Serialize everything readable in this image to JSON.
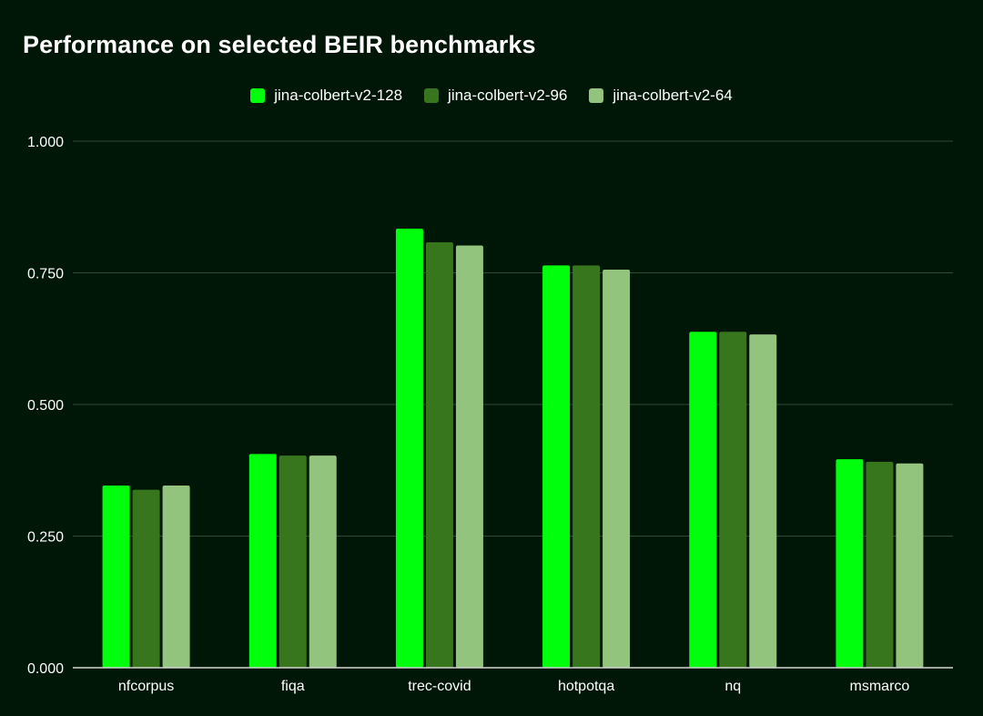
{
  "colors": {
    "background": "#001607",
    "gridline": "#2e4b36",
    "axis": "#cfd6d0",
    "text": "#ffffff"
  },
  "chart_data": {
    "type": "bar",
    "title": "Performance on selected BEIR benchmarks",
    "xlabel": "",
    "ylabel": "",
    "ylim": [
      0,
      1
    ],
    "yticks": [
      "1.000",
      "0.750",
      "0.500",
      "0.250",
      "0.000"
    ],
    "ytick_values": [
      1.0,
      0.75,
      0.5,
      0.25,
      0.0
    ],
    "legend_position": "top-center",
    "grid": true,
    "categories": [
      "nfcorpus",
      "fiqa",
      "trec-covid",
      "hotpotqa",
      "nq",
      "msmarco"
    ],
    "series": [
      {
        "name": "jina-colbert-v2-128",
        "color": "#00ff0d",
        "values": [
          0.346,
          0.406,
          0.834,
          0.764,
          0.638,
          0.396
        ]
      },
      {
        "name": "jina-colbert-v2-96",
        "color": "#38761d",
        "values": [
          0.338,
          0.403,
          0.808,
          0.764,
          0.638,
          0.391
        ]
      },
      {
        "name": "jina-colbert-v2-64",
        "color": "#93c47d",
        "values": [
          0.346,
          0.403,
          0.802,
          0.756,
          0.633,
          0.388
        ]
      }
    ]
  }
}
